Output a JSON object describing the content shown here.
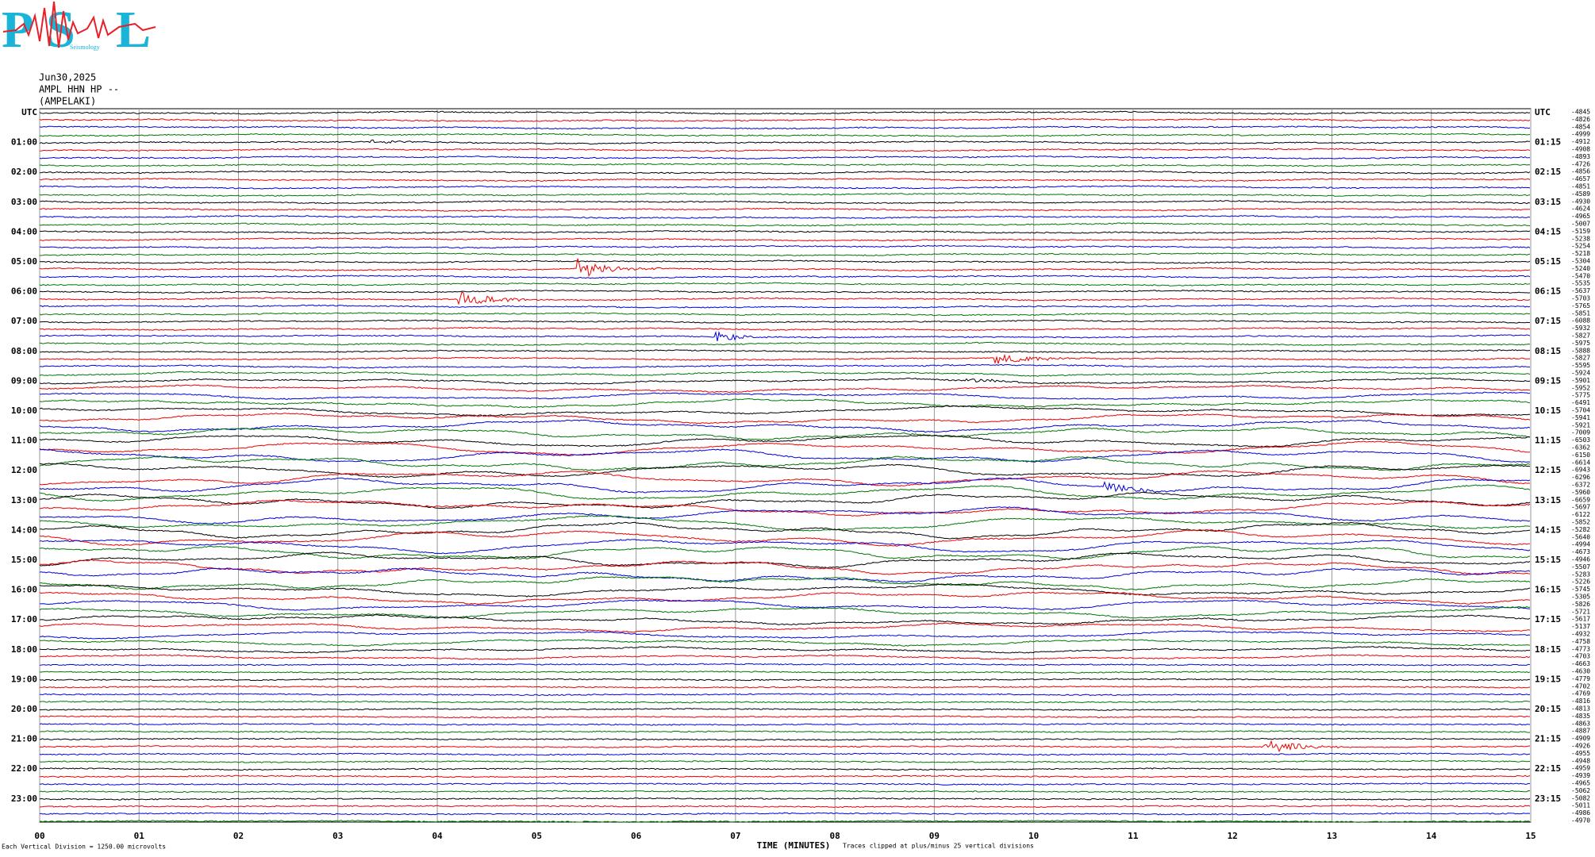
{
  "logo": {
    "letters": [
      "P",
      "S",
      "L"
    ],
    "subtitle": "Seismology"
  },
  "header": {
    "date": "Jun30,2025",
    "channel": "AMPL HHN HP --",
    "station": "(AMPELAKI)"
  },
  "left_labels": [
    "UTC",
    "01:00",
    "02:00",
    "03:00",
    "04:00",
    "05:00",
    "06:00",
    "07:00",
    "08:00",
    "09:00",
    "10:00",
    "11:00",
    "12:00",
    "13:00",
    "14:00",
    "15:00",
    "16:00",
    "17:00",
    "18:00",
    "19:00",
    "20:00",
    "21:00",
    "22:00",
    "23:00"
  ],
  "right_labels": [
    "UTC",
    "01:15",
    "02:15",
    "03:15",
    "04:15",
    "05:15",
    "06:15",
    "07:15",
    "08:15",
    "09:15",
    "10:15",
    "11:15",
    "12:15",
    "13:15",
    "14:15",
    "15:15",
    "16:15",
    "17:15",
    "18:15",
    "19:15",
    "20:15",
    "21:15",
    "22:15",
    "23:15"
  ],
  "offsets": [
    -4845,
    -4826,
    -4854,
    -4999,
    -4912,
    -4908,
    -4893,
    -4726,
    -4856,
    -4657,
    -4851,
    -4589,
    -4930,
    -4624,
    -4965,
    -5007,
    -5159,
    -5238,
    -5254,
    -5218,
    -5304,
    -5240,
    -5470,
    -5535,
    -5637,
    -5703,
    -5765,
    -5851,
    -6088,
    -5932,
    -5827,
    -5975,
    -5888,
    -5827,
    -5595,
    -5924,
    -5901,
    -5952,
    -5775,
    -6491,
    -5704,
    -5941,
    -5921,
    -7009,
    -6503,
    -6362,
    -6150,
    -6614,
    -6943,
    -6296,
    -6372,
    -5960,
    -6659,
    -5697,
    -6122,
    -5852,
    -5282,
    -5640,
    -4994,
    -4673,
    -4946,
    -5507,
    -5283,
    -5226,
    -5745,
    -5305,
    -5826,
    -5721,
    -5617,
    -5137,
    -4932,
    -4758,
    -4773,
    -4703,
    -4663,
    -4630,
    -4779,
    -4702,
    -4769,
    -4816,
    -4813,
    -4835,
    -4863,
    -4887,
    -4909,
    -4926,
    -4955,
    -4948,
    -4959,
    -4939,
    -4965,
    -5062,
    -5082,
    -5011,
    -4986,
    -4970
  ],
  "minute_labels": [
    "00",
    "01",
    "02",
    "03",
    "04",
    "05",
    "06",
    "07",
    "08",
    "09",
    "10",
    "11",
    "12",
    "13",
    "14",
    "15"
  ],
  "footer": {
    "scale_note": "Each Vertical Division = 1250.00 microvolts",
    "axis_title": "TIME (MINUTES)",
    "clip_note": "Traces clipped at plus/minus 25 vertical divisions"
  }
}
